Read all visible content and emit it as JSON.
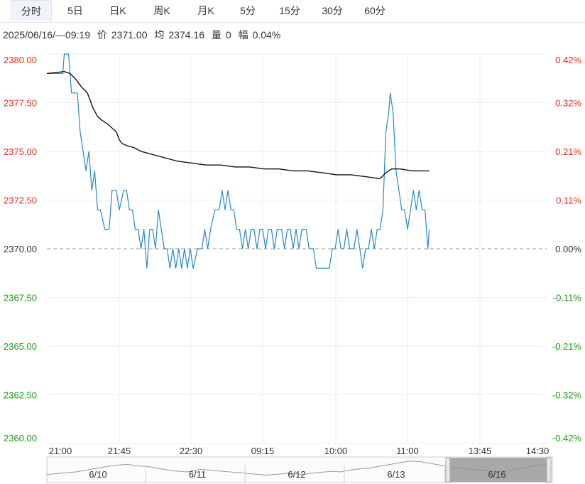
{
  "tabs": [
    {
      "label": "分时",
      "active": true
    },
    {
      "label": "5日",
      "active": false
    },
    {
      "label": "日K",
      "active": false
    },
    {
      "label": "周K",
      "active": false
    },
    {
      "label": "月K",
      "active": false
    },
    {
      "label": "5分",
      "active": false
    },
    {
      "label": "15分",
      "active": false
    },
    {
      "label": "30分",
      "active": false
    },
    {
      "label": "60分",
      "active": false
    }
  ],
  "info": {
    "datetime": "2025/06/16/—09:19",
    "price_label": "价",
    "price": "2371.00",
    "avg_label": "均",
    "avg": "2374.16",
    "volume_label": "量",
    "volume": "0",
    "range_label": "幅",
    "range": "0.04%"
  },
  "colors": {
    "up": "#e0301e",
    "down": "#1a9a1a",
    "neutral": "#333333",
    "price_line": "#2a88c6",
    "avg_line": "#111111"
  },
  "chart_data": {
    "type": "line",
    "base_price": 2370.0,
    "ylim": [
      2360.0,
      2380.0
    ],
    "left_ticks": [
      "2380.00",
      "2377.50",
      "2375.00",
      "2372.50",
      "2370.00",
      "2367.50",
      "2365.00",
      "2362.50",
      "2360.00"
    ],
    "right_ticks": [
      "0.42%",
      "0.32%",
      "0.21%",
      "0.11%",
      "0.00%",
      "-0.11%",
      "-0.21%",
      "-0.32%",
      "-0.42%"
    ],
    "x_ticks": [
      "21:00",
      "21:45",
      "22:30",
      "09:15",
      "10:00",
      "11:00",
      "13:45",
      "14:30"
    ],
    "x_slots": 345,
    "series": [
      {
        "role": "price",
        "points": [
          [
            0,
            2379.0
          ],
          [
            11,
            2379.0
          ],
          [
            12,
            2380.0
          ],
          [
            15,
            2380.0
          ],
          [
            17,
            2378.0
          ],
          [
            21,
            2378.0
          ],
          [
            23,
            2376.0
          ],
          [
            25,
            2375.0
          ],
          [
            27,
            2374.0
          ],
          [
            29,
            2375.0
          ],
          [
            31,
            2373.0
          ],
          [
            33,
            2374.0
          ],
          [
            35,
            2372.0
          ],
          [
            37,
            2372.0
          ],
          [
            40,
            2371.0
          ],
          [
            43,
            2371.0
          ],
          [
            45,
            2373.0
          ],
          [
            48,
            2373.0
          ],
          [
            50,
            2372.0
          ],
          [
            53,
            2373.0
          ],
          [
            55,
            2373.0
          ],
          [
            57,
            2372.0
          ],
          [
            59,
            2372.0
          ],
          [
            61,
            2371.0
          ],
          [
            63,
            2371.0
          ],
          [
            65,
            2370.0
          ],
          [
            67,
            2371.0
          ],
          [
            69,
            2369.0
          ],
          [
            71,
            2371.0
          ],
          [
            73,
            2371.0
          ],
          [
            75,
            2370.0
          ],
          [
            77,
            2372.0
          ],
          [
            79,
            2371.0
          ],
          [
            81,
            2370.0
          ],
          [
            83,
            2370.0
          ],
          [
            85,
            2369.0
          ],
          [
            87,
            2370.0
          ],
          [
            89,
            2369.0
          ],
          [
            91,
            2370.0
          ],
          [
            93,
            2369.0
          ],
          [
            95,
            2370.0
          ],
          [
            97,
            2369.0
          ],
          [
            99,
            2370.0
          ],
          [
            101,
            2369.0
          ],
          [
            104,
            2370.0
          ],
          [
            107,
            2370.0
          ],
          [
            109,
            2371.0
          ],
          [
            111,
            2370.0
          ],
          [
            113,
            2371.0
          ],
          [
            116,
            2372.0
          ],
          [
            119,
            2372.0
          ],
          [
            121,
            2373.0
          ],
          [
            123,
            2372.0
          ],
          [
            125,
            2373.0
          ],
          [
            127,
            2372.0
          ],
          [
            129,
            2372.0
          ],
          [
            131,
            2371.0
          ],
          [
            133,
            2371.0
          ],
          [
            135,
            2370.0
          ],
          [
            137,
            2371.0
          ],
          [
            139,
            2370.0
          ],
          [
            141,
            2371.0
          ],
          [
            143,
            2371.0
          ],
          [
            145,
            2370.0
          ],
          [
            147,
            2371.0
          ],
          [
            149,
            2371.0
          ],
          [
            151,
            2370.0
          ],
          [
            153,
            2371.0
          ],
          [
            155,
            2371.0
          ],
          [
            157,
            2370.0
          ],
          [
            159,
            2371.0
          ],
          [
            162,
            2371.0
          ],
          [
            164,
            2370.0
          ],
          [
            166,
            2371.0
          ],
          [
            168,
            2371.0
          ],
          [
            170,
            2370.0
          ],
          [
            172,
            2371.0
          ],
          [
            174,
            2370.0
          ],
          [
            176,
            2371.0
          ],
          [
            179,
            2371.0
          ],
          [
            181,
            2370.0
          ],
          [
            184,
            2370.0
          ],
          [
            186,
            2369.0
          ],
          [
            195,
            2369.0
          ],
          [
            197,
            2370.0
          ],
          [
            199,
            2370.0
          ],
          [
            201,
            2371.0
          ],
          [
            203,
            2370.0
          ],
          [
            205,
            2370.0
          ],
          [
            207,
            2371.0
          ],
          [
            209,
            2370.0
          ],
          [
            212,
            2370.0
          ],
          [
            214,
            2371.0
          ],
          [
            216,
            2370.0
          ],
          [
            218,
            2369.0
          ],
          [
            220,
            2370.0
          ],
          [
            222,
            2370.0
          ],
          [
            224,
            2371.0
          ],
          [
            226,
            2370.0
          ],
          [
            228,
            2371.0
          ],
          [
            230,
            2371.0
          ],
          [
            232,
            2372.0
          ],
          [
            234,
            2376.0
          ],
          [
            236,
            2377.0
          ],
          [
            237,
            2378.0
          ],
          [
            239,
            2377.0
          ],
          [
            241,
            2374.0
          ],
          [
            243,
            2373.0
          ],
          [
            245,
            2372.0
          ],
          [
            247,
            2372.0
          ],
          [
            249,
            2371.0
          ],
          [
            251,
            2372.0
          ],
          [
            253,
            2373.0
          ],
          [
            255,
            2372.0
          ],
          [
            257,
            2373.0
          ],
          [
            259,
            2372.0
          ],
          [
            261,
            2372.0
          ],
          [
            263,
            2370.0
          ],
          [
            264,
            2371.0
          ]
        ]
      },
      {
        "role": "average",
        "points": [
          [
            0,
            2379.0
          ],
          [
            12,
            2379.1
          ],
          [
            16,
            2379.0
          ],
          [
            20,
            2378.7
          ],
          [
            24,
            2378.3
          ],
          [
            28,
            2378.0
          ],
          [
            30,
            2377.6
          ],
          [
            32,
            2377.2
          ],
          [
            35,
            2376.8
          ],
          [
            38,
            2376.6
          ],
          [
            42,
            2376.4
          ],
          [
            45,
            2376.2
          ],
          [
            48,
            2376.0
          ],
          [
            50,
            2375.6
          ],
          [
            52,
            2375.4
          ],
          [
            55,
            2375.3
          ],
          [
            60,
            2375.2
          ],
          [
            65,
            2375.0
          ],
          [
            70,
            2374.9
          ],
          [
            75,
            2374.8
          ],
          [
            80,
            2374.7
          ],
          [
            85,
            2374.6
          ],
          [
            90,
            2374.5
          ],
          [
            100,
            2374.4
          ],
          [
            110,
            2374.3
          ],
          [
            120,
            2374.3
          ],
          [
            130,
            2374.2
          ],
          [
            140,
            2374.2
          ],
          [
            150,
            2374.1
          ],
          [
            160,
            2374.1
          ],
          [
            170,
            2374.0
          ],
          [
            180,
            2374.0
          ],
          [
            190,
            2373.9
          ],
          [
            200,
            2373.8
          ],
          [
            210,
            2373.8
          ],
          [
            220,
            2373.7
          ],
          [
            230,
            2373.6
          ],
          [
            234,
            2373.9
          ],
          [
            238,
            2374.1
          ],
          [
            244,
            2374.1
          ],
          [
            252,
            2374.0
          ],
          [
            264,
            2374.0
          ]
        ]
      }
    ],
    "navigator": {
      "labels": [
        "6/10",
        "6/11",
        "6/12",
        "6/13",
        "6/16"
      ]
    }
  }
}
